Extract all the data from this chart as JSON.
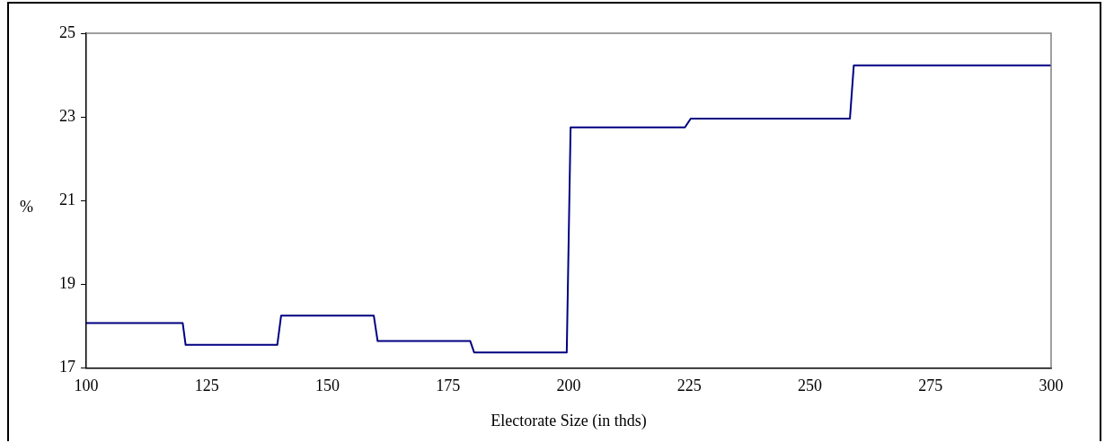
{
  "chart_data": {
    "type": "line",
    "xlabel": "Electorate Size (in thds)",
    "ylabel": "%",
    "x": [
      100,
      120,
      120.6,
      139.6,
      140.4,
      159.6,
      160.4,
      179.6,
      180.4,
      199.6,
      200.4,
      224.1,
      225.3,
      258.3,
      259.1,
      300
    ],
    "series": [
      {
        "color": "#000080",
        "values": [
          18.07,
          18.07,
          17.55,
          17.55,
          18.25,
          18.25,
          17.64,
          17.64,
          17.37,
          17.37,
          22.75,
          22.75,
          22.96,
          22.96,
          24.23,
          24.23
        ]
      }
    ],
    "xlim": [
      100,
      300
    ],
    "xticks": [
      100,
      125,
      150,
      175,
      200,
      225,
      250,
      275,
      300
    ],
    "ylim": [
      17,
      25
    ],
    "yticks": [
      17,
      19,
      21,
      23,
      25
    ],
    "grid": false,
    "legend": false,
    "marker": "none",
    "line_style": "solid"
  }
}
